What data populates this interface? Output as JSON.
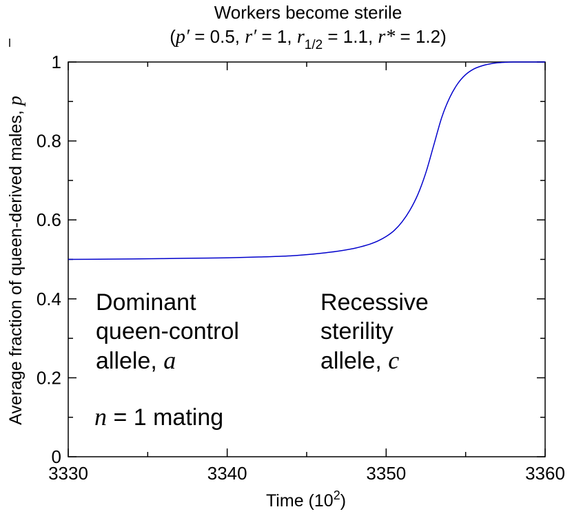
{
  "chart_data": {
    "type": "line",
    "title": "Workers become sterile",
    "subtitle": {
      "open": "(",
      "p_sym": "p′",
      "p_val": " = 0.5, ",
      "r_sym": "r′",
      "r_val": " = 1, ",
      "rhalf_sym": "r",
      "rhalf_sub": "1/2",
      "rhalf_val": " = 1.1, ",
      "rstar_sym": "r*",
      "rstar_val": " = 1.2)"
    },
    "xlabel": {
      "text": "Time (10",
      "sup": "2",
      "close": ")"
    },
    "ylabel": {
      "text": "Average fraction of queen-derived males, ",
      "sym": "p"
    },
    "xlim": [
      3330,
      3360
    ],
    "ylim": [
      0,
      1
    ],
    "xticks": [
      3330,
      3340,
      3350,
      3360
    ],
    "yticks": [
      0,
      0.2,
      0.4,
      0.6,
      0.8,
      1
    ],
    "ytick_labels": [
      "0",
      "0.2",
      "0.4",
      "0.6",
      "0.8",
      "1"
    ],
    "grid": false,
    "series": [
      {
        "color": "#0000cc",
        "x": [
          3330,
          3332,
          3334,
          3336,
          3338,
          3340,
          3342,
          3344,
          3345,
          3346,
          3347,
          3348,
          3348.5,
          3349,
          3349.5,
          3350,
          3350.5,
          3351,
          3351.5,
          3352,
          3352.5,
          3353,
          3353.5,
          3354,
          3354.5,
          3355,
          3355.5,
          3356,
          3356.5,
          3357,
          3357.5,
          3358,
          3359,
          3360
        ],
        "y": [
          0.5,
          0.5005,
          0.501,
          0.502,
          0.503,
          0.504,
          0.506,
          0.509,
          0.512,
          0.516,
          0.521,
          0.528,
          0.533,
          0.539,
          0.547,
          0.558,
          0.573,
          0.595,
          0.625,
          0.665,
          0.72,
          0.79,
          0.86,
          0.91,
          0.945,
          0.968,
          0.982,
          0.99,
          0.995,
          0.998,
          0.9993,
          1.0,
          1.0,
          1.0
        ]
      }
    ],
    "annotations": [
      {
        "lines": [
          "Dominant",
          "queen-control"
        ],
        "last_text": "allele, ",
        "last_sym": "a"
      },
      {
        "lines": [
          "Recessive",
          "sterility"
        ],
        "last_text": "allele, ",
        "last_sym": "c"
      }
    ],
    "mating_note": {
      "sym": "n",
      "text": " = 1 mating"
    }
  }
}
